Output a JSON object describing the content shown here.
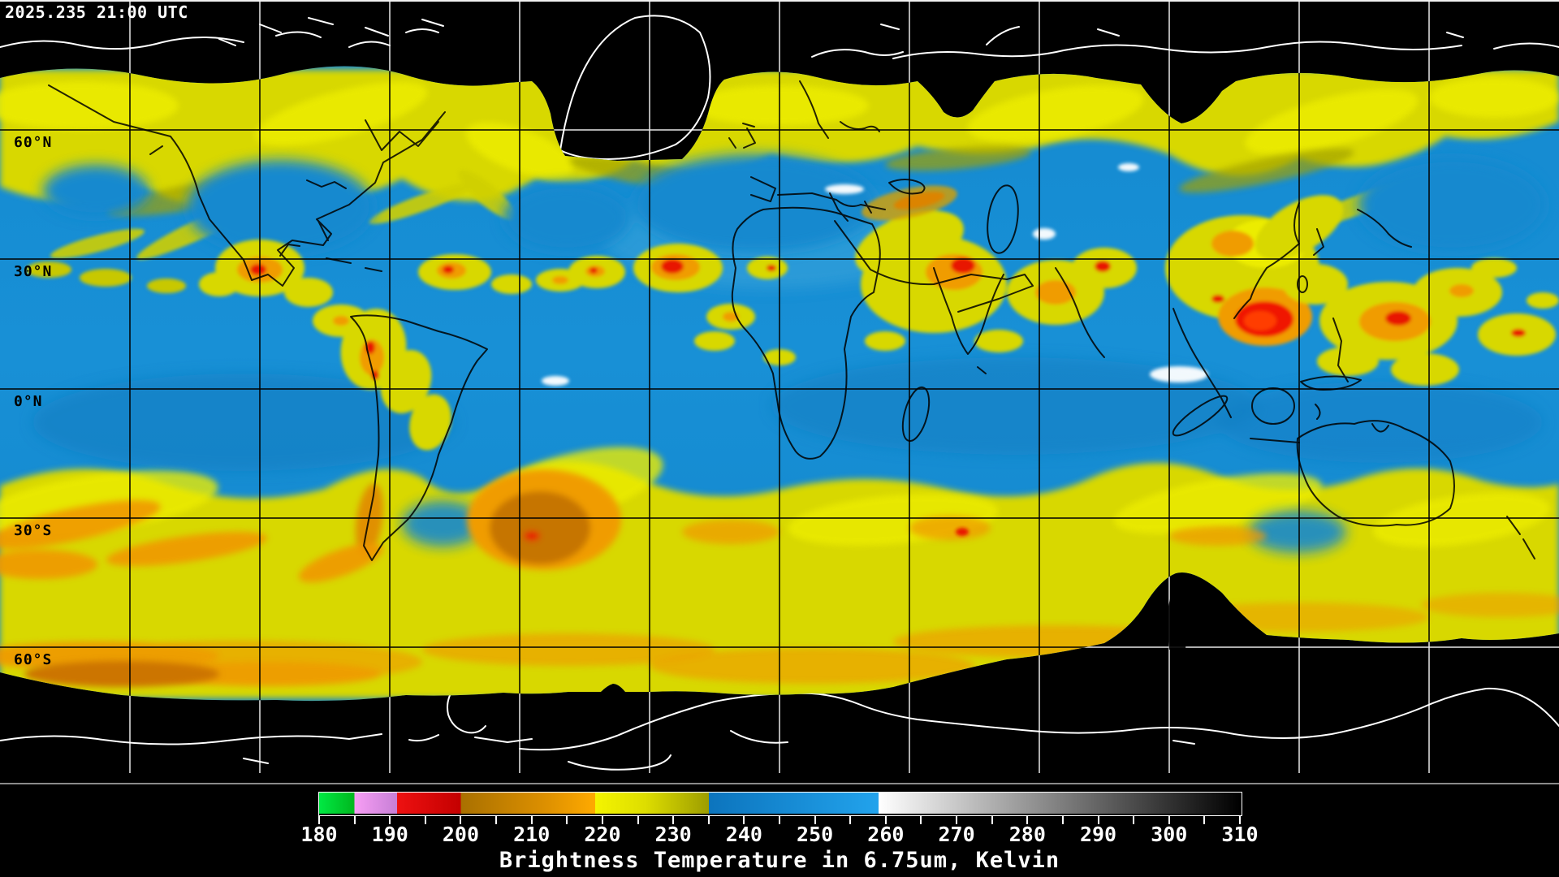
{
  "header": {
    "timestamp": "2025.235 21:00 UTC"
  },
  "map": {
    "latitude_labels": [
      "60°N",
      "30°N",
      "0°N",
      "30°S",
      "60°S"
    ],
    "description": "Global composite satellite water vapor brightness temperature image",
    "land_outline_color_over_imagery": "#000000",
    "land_outline_color_over_no_data": "#ffffff",
    "no_data_color": "#000000"
  },
  "colorbar": {
    "min": 180,
    "max": 310,
    "tick_step": 5,
    "label_step": 10,
    "tick_labels": [
      "180",
      "190",
      "200",
      "210",
      "220",
      "230",
      "240",
      "250",
      "260",
      "270",
      "280",
      "290",
      "300",
      "310"
    ],
    "caption": "Brightness Temperature in 6.75um, Kelvin",
    "segments": [
      {
        "from": 180,
        "to": 185,
        "color_start": "#00e943",
        "color_end": "#00b71e"
      },
      {
        "from": 185,
        "to": 191,
        "color_start": "#f79ef4",
        "color_end": "#c77fd6"
      },
      {
        "from": 191,
        "to": 200,
        "color_start": "#ee1111",
        "color_end": "#c40000"
      },
      {
        "from": 200,
        "to": 212,
        "color_start": "#a97000",
        "color_end": "#dd9000"
      },
      {
        "from": 212,
        "to": 219,
        "color_start": "#dd9000",
        "color_end": "#ffaa00"
      },
      {
        "from": 219,
        "to": 226,
        "color_start": "#f4f400",
        "color_end": "#dede00"
      },
      {
        "from": 226,
        "to": 235,
        "color_start": "#dede00",
        "color_end": "#9d9d00"
      },
      {
        "from": 235,
        "to": 259,
        "color_start": "#0c74bd",
        "color_end": "#22a3ec"
      },
      {
        "from": 259,
        "to": 310,
        "color_start": "#ffffff",
        "color_end": "#000000"
      }
    ]
  }
}
